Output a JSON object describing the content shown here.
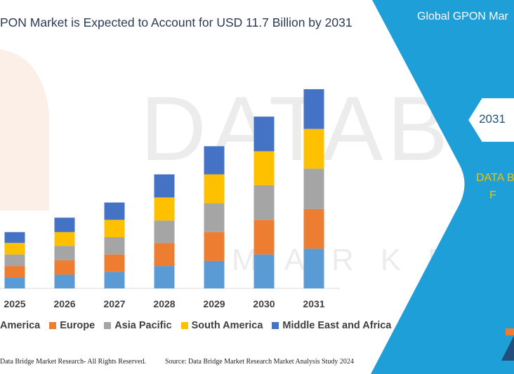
{
  "header": {
    "title": "PON Market is Expected to Account for USD 11.7 Billion by 2031"
  },
  "side_panel": {
    "title": "Global GPON Mar",
    "hex_label": "2031",
    "brand_line1": "DATA B",
    "brand_line2": "F"
  },
  "legend": {
    "items": [
      {
        "label": "America",
        "color": "#5b9bd5"
      },
      {
        "label": "Europe",
        "color": "#ed7d31"
      },
      {
        "label": "Asia Pacific",
        "color": "#a5a5a5"
      },
      {
        "label": "South America",
        "color": "#ffc000"
      },
      {
        "label": "Middle East and Africa",
        "color": "#4472c4"
      }
    ]
  },
  "footer": {
    "left": "Data Bridge Market Research-  All Rights Reserved.",
    "right": "Source: Data Bridge Market Research  Market Analysis Study 2024"
  },
  "colors": {
    "panel_blue": "#1f9fd8",
    "hex_fill": "#ffffff",
    "brand_yellow": "#f2c200",
    "title_text": "#2b3a57",
    "axis": "#d9d9d9"
  },
  "chart_data": {
    "type": "bar",
    "stacked": true,
    "categories": [
      "2025",
      "2026",
      "2027",
      "2028",
      "2029",
      "2030",
      "2031"
    ],
    "series": [
      {
        "name": "America",
        "color": "#5b9bd5",
        "values": [
          15,
          19,
          23,
          31,
          38,
          47,
          55
        ]
      },
      {
        "name": "Europe",
        "color": "#ed7d31",
        "values": [
          16,
          20,
          24,
          32,
          40,
          48,
          55
        ]
      },
      {
        "name": "Asia Pacific",
        "color": "#a5a5a5",
        "values": [
          16,
          20,
          24,
          31,
          40,
          48,
          56
        ]
      },
      {
        "name": "South America",
        "color": "#ffc000",
        "values": [
          16,
          19,
          24,
          32,
          40,
          47,
          55
        ]
      },
      {
        "name": "Middle East and Africa",
        "color": "#4472c4",
        "values": [
          15,
          20,
          24,
          32,
          39,
          48,
          55
        ]
      }
    ],
    "ylim": [
      0,
      280
    ],
    "grid": false,
    "legend_position": "bottom",
    "xlabel": "",
    "ylabel": ""
  }
}
